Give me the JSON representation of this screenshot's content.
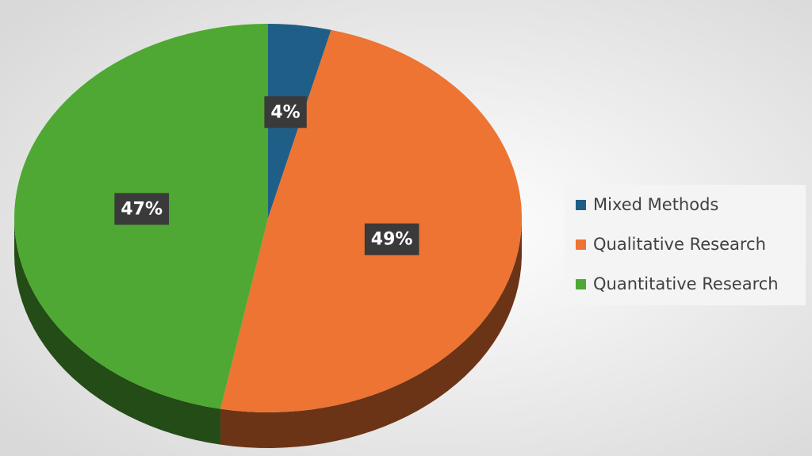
{
  "chart_data": {
    "type": "pie",
    "categories": [
      "Mixed Methods",
      "Qualitative Research",
      "Quantitative Research"
    ],
    "values": [
      4,
      49,
      47
    ],
    "value_labels": [
      "4%",
      "49%",
      "47%"
    ],
    "colors": [
      "#1f5f87",
      "#ed7433",
      "#4fa833"
    ],
    "legend": "right"
  }
}
